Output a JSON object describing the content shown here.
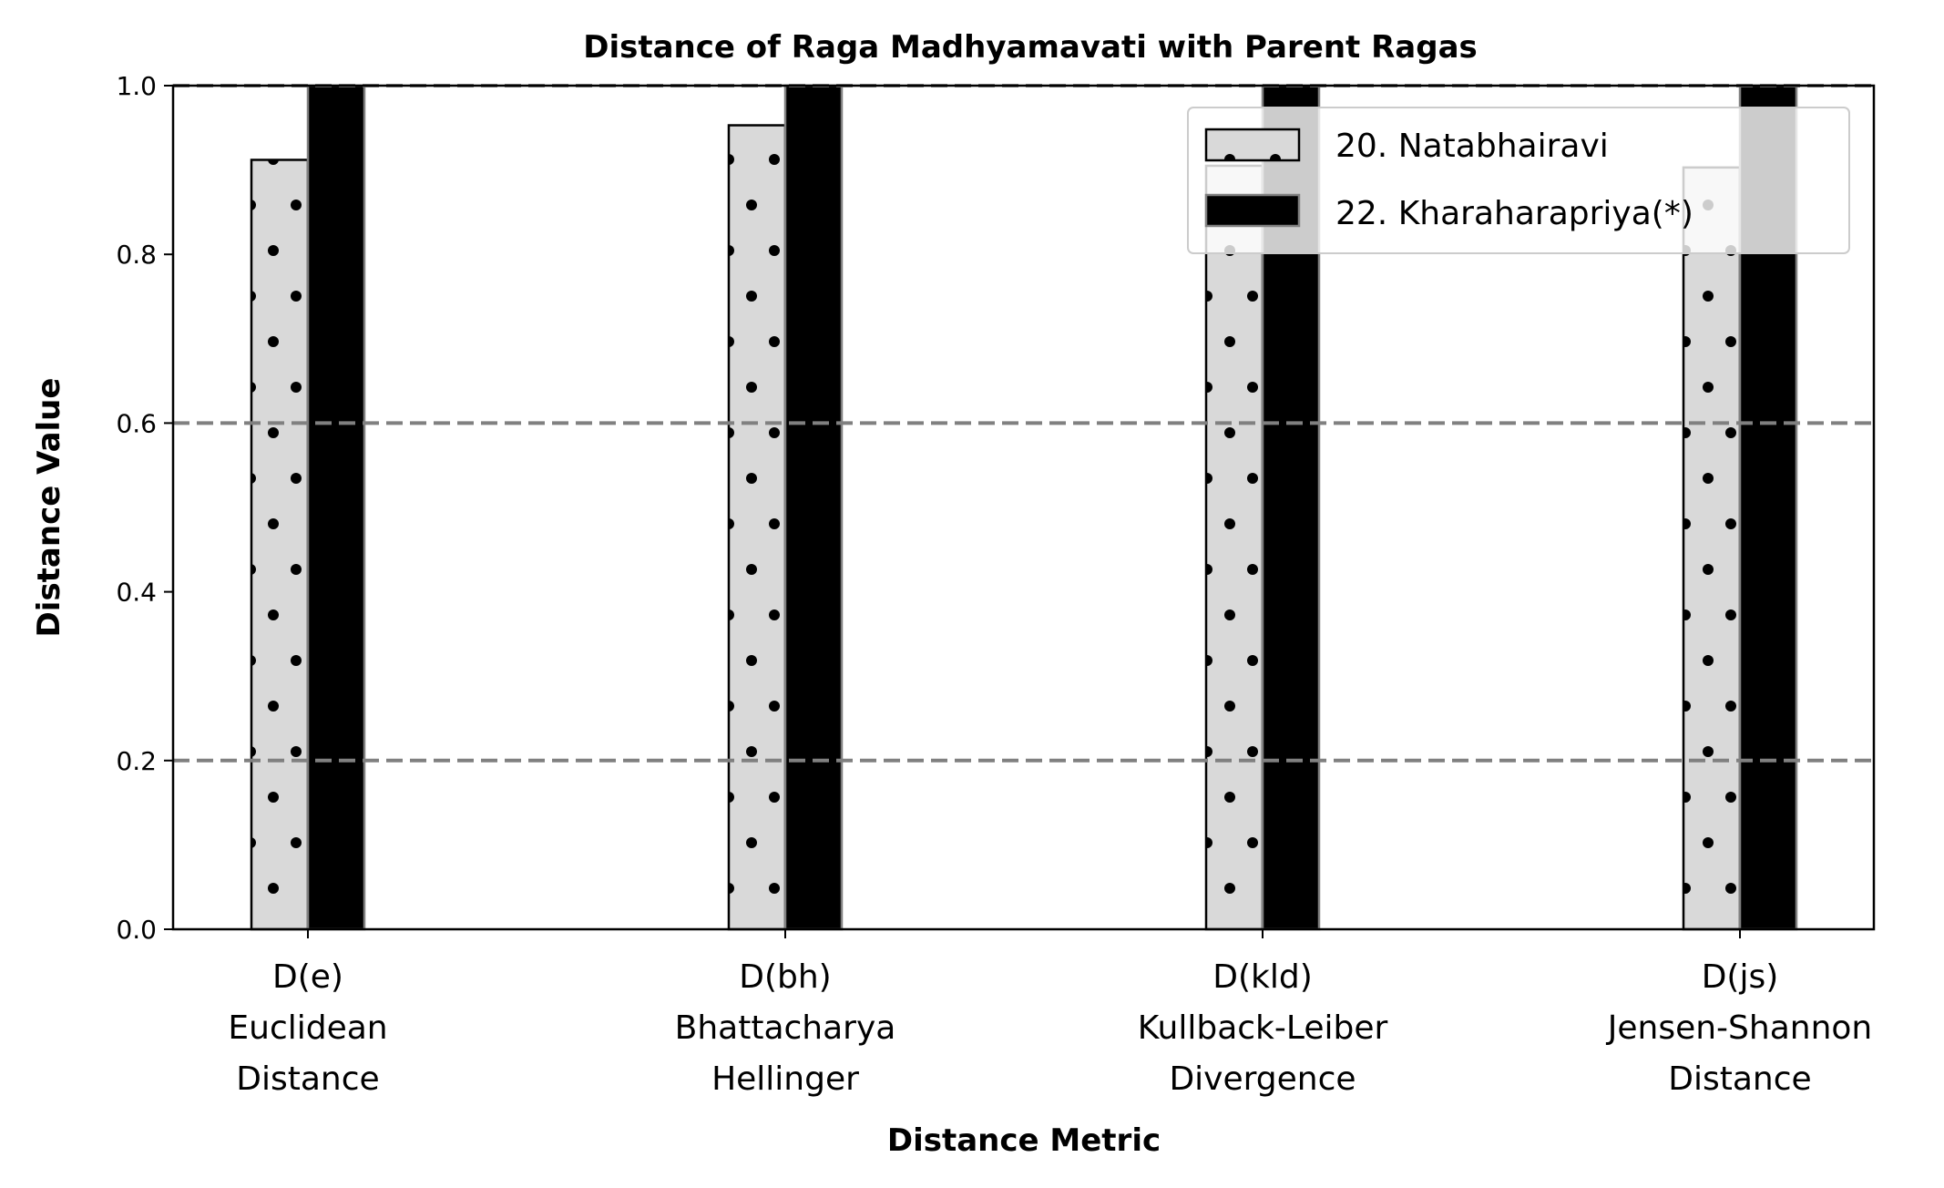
{
  "chart_data": {
    "type": "bar",
    "title": "Distance of Raga Madhyamavati with Parent Ragas",
    "xlabel": "Distance Metric",
    "ylabel": "Distance Value",
    "categories": [
      [
        "D(e)",
        "Euclidean",
        "Distance"
      ],
      [
        "D(bh)",
        "Bhattacharya",
        "Hellinger"
      ],
      [
        "D(kld)",
        "Kullback-Leiber",
        "Divergence"
      ],
      [
        "D(js)",
        "Jensen-Shannon",
        "Distance"
      ]
    ],
    "series": [
      {
        "name": "20. Natabhairavi",
        "values": [
          0.912,
          0.953,
          0.905,
          0.903
        ],
        "color": "#d9d9d9",
        "pattern": "dots"
      },
      {
        "name": "22. Kharaharapriya(*)",
        "values": [
          1.0,
          1.0,
          1.0,
          1.0
        ],
        "color": "#000000",
        "pattern": "solid"
      }
    ],
    "ylim": [
      0,
      1
    ],
    "yticks": [
      "0.0",
      "0.2",
      "0.4",
      "0.6",
      "0.8",
      "1.0"
    ],
    "reference_lines": [
      0.2,
      0.6,
      1.0
    ],
    "reference_line_color": "#808080",
    "grid": false,
    "legend_position": "top-right"
  }
}
